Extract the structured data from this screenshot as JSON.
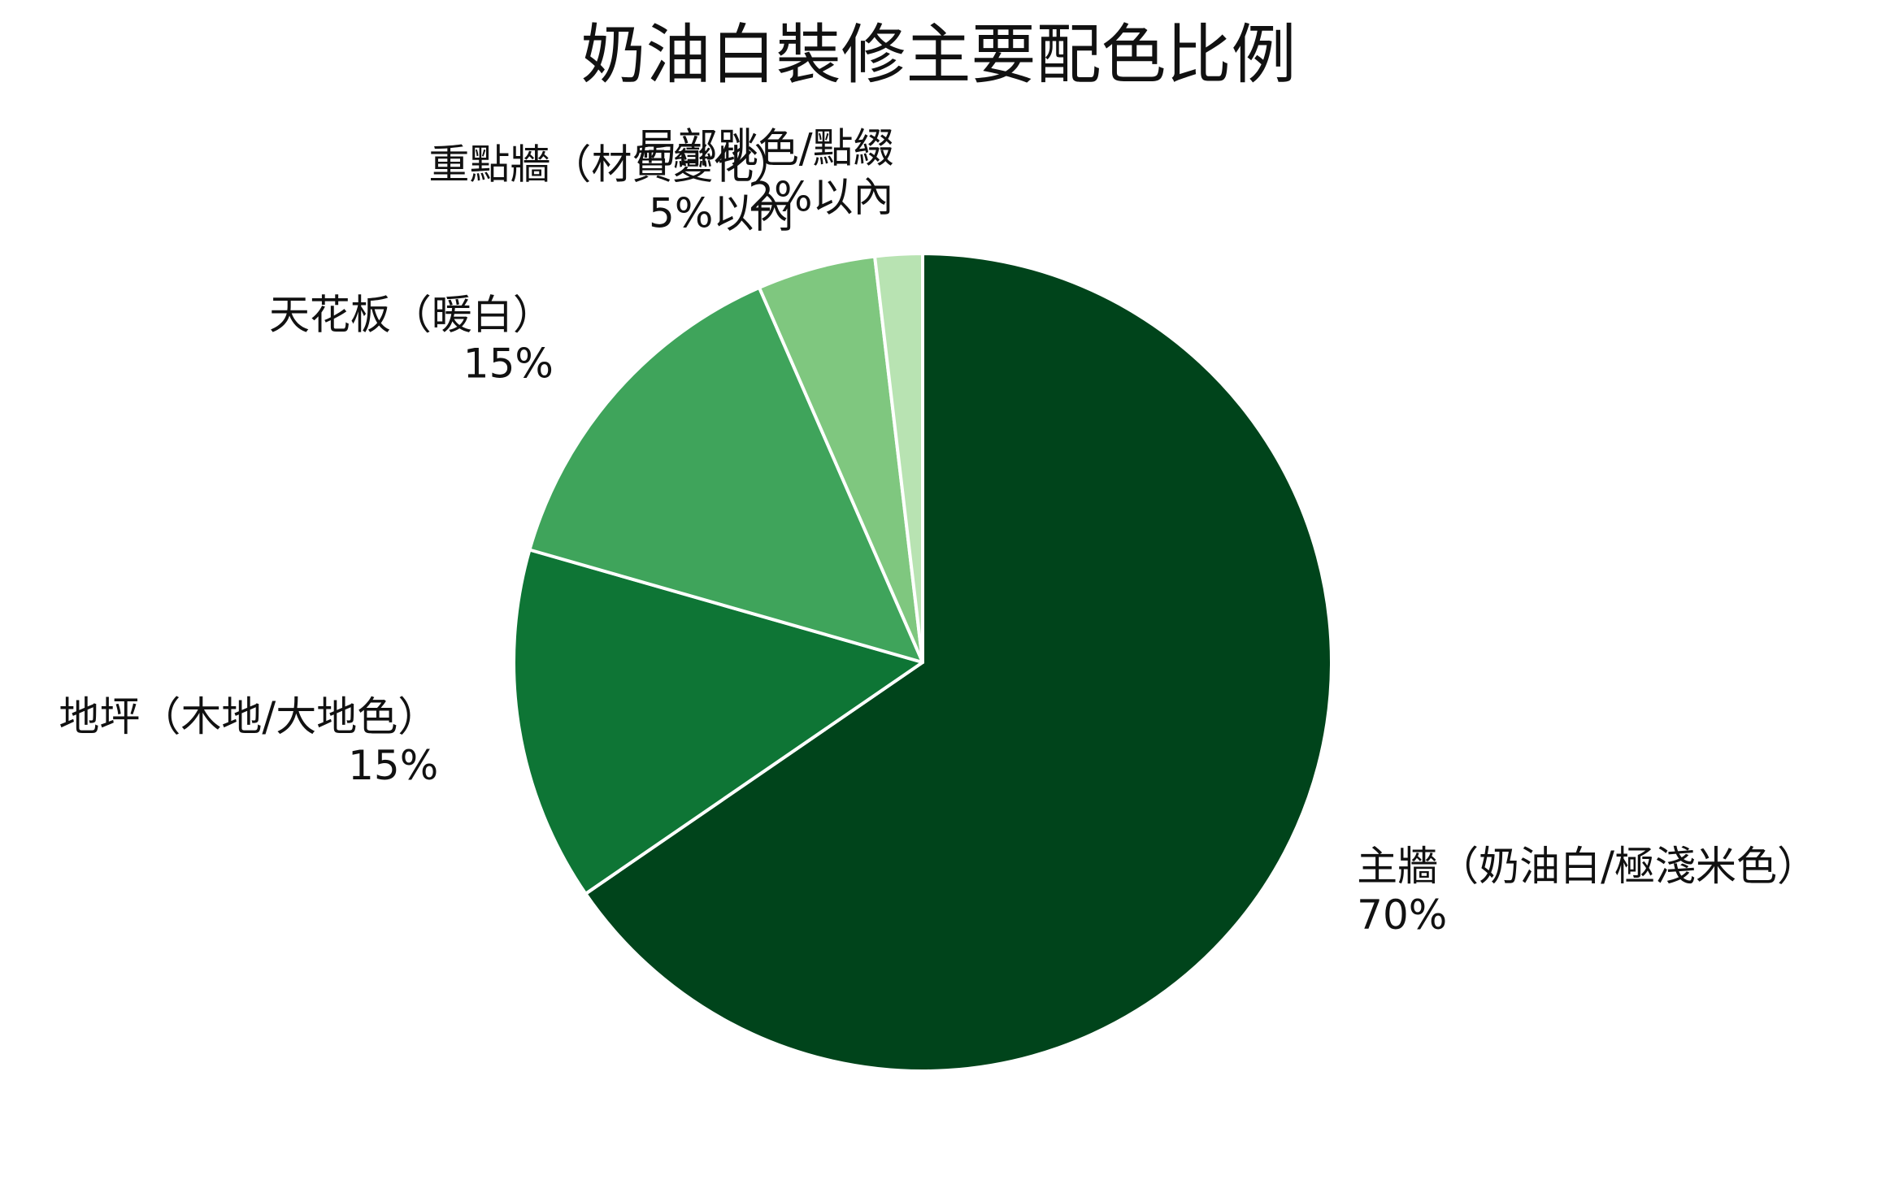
{
  "chart_data": {
    "type": "pie",
    "title": "奶油白裝修主要配色比例",
    "slices": [
      {
        "label": "主牆（奶油白/極淺米色）",
        "value": 70,
        "value_label": "70%",
        "color": "#00441b"
      },
      {
        "label": "地坪（木地/大地色）",
        "value": 15,
        "value_label": "15%",
        "color": "#0e7535"
      },
      {
        "label": "天花板（暖白）",
        "value": 15,
        "value_label": "15%",
        "color": "#3fa45b"
      },
      {
        "label": "重點牆（材質變化）",
        "value": 5,
        "value_label": "5%以內",
        "color": "#7fc77f"
      },
      {
        "label": "局部跳色/點綴",
        "value": 2,
        "value_label": "2%以內",
        "color": "#b8e3b2"
      }
    ],
    "start_angle": "top",
    "direction": "clockwise",
    "slice_border_color": "#ffffff",
    "legend": "none"
  }
}
